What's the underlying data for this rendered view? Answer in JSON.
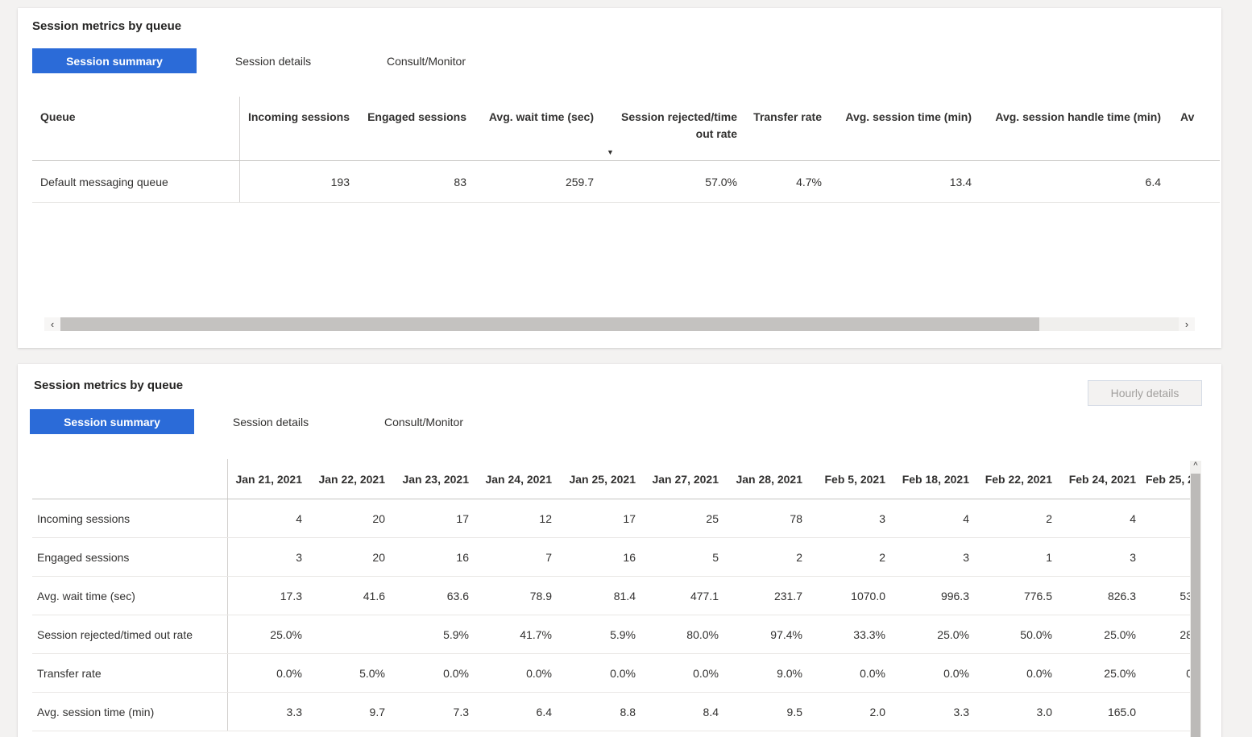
{
  "colors": {
    "accent": "#2b6bd8",
    "page_bg": "#f3f2f1",
    "text": "#323130",
    "active_tab_text": "#ffffff"
  },
  "top_panel": {
    "title": "Session metrics by queue",
    "tabs": [
      "Session summary",
      "Session details",
      "Consult/Monitor"
    ],
    "active_tab": "Session summary",
    "table": {
      "columns": [
        "Queue",
        "Incoming sessions",
        "Engaged sessions",
        "Avg. wait time (sec)",
        "Session rejected/time out rate",
        "Transfer rate",
        "Avg. session time (min)",
        "Avg. session handle time (min)",
        "Av"
      ],
      "sort": {
        "column": "Avg. wait time (sec)",
        "direction": "descending",
        "icon": "▼"
      },
      "rows": [
        {
          "queue": "Default messaging queue",
          "values": [
            "193",
            "83",
            "259.7",
            "57.0%",
            "4.7%",
            "13.4",
            "6.4"
          ]
        }
      ]
    },
    "h_scrollbar": {
      "left_arrow": "‹",
      "right_arrow": "›"
    }
  },
  "bottom_panel": {
    "title": "Session metrics by queue",
    "hourly_details_button": "Hourly details",
    "tabs": [
      "Session summary",
      "Session details",
      "Consult/Monitor"
    ],
    "active_tab": "Session summary",
    "table": {
      "date_columns": [
        "Jan 21, 2021",
        "Jan 22, 2021",
        "Jan 23, 2021",
        "Jan 24, 2021",
        "Jan 25, 2021",
        "Jan 27, 2021",
        "Jan 28, 2021",
        "Feb 5, 2021",
        "Feb 18, 2021",
        "Feb 22, 2021",
        "Feb 24, 2021",
        "Feb 25, 2"
      ],
      "rows": [
        {
          "label": "Incoming sessions",
          "values": [
            "4",
            "20",
            "17",
            "12",
            "17",
            "25",
            "78",
            "3",
            "4",
            "2",
            "4",
            ""
          ]
        },
        {
          "label": "Engaged sessions",
          "values": [
            "3",
            "20",
            "16",
            "7",
            "16",
            "5",
            "2",
            "2",
            "3",
            "1",
            "3",
            ""
          ]
        },
        {
          "label": "Avg. wait time (sec)",
          "values": [
            "17.3",
            "41.6",
            "63.6",
            "78.9",
            "81.4",
            "477.1",
            "231.7",
            "1070.0",
            "996.3",
            "776.5",
            "826.3",
            "53"
          ]
        },
        {
          "label": "Session rejected/timed out rate",
          "values": [
            "25.0%",
            "",
            "5.9%",
            "41.7%",
            "5.9%",
            "80.0%",
            "97.4%",
            "33.3%",
            "25.0%",
            "50.0%",
            "25.0%",
            "28"
          ]
        },
        {
          "label": "Transfer rate",
          "values": [
            "0.0%",
            "5.0%",
            "0.0%",
            "0.0%",
            "0.0%",
            "0.0%",
            "9.0%",
            "0.0%",
            "0.0%",
            "0.0%",
            "25.0%",
            "0"
          ]
        },
        {
          "label": "Avg. session time (min)",
          "values": [
            "3.3",
            "9.7",
            "7.3",
            "6.4",
            "8.8",
            "8.4",
            "9.5",
            "2.0",
            "3.3",
            "3.0",
            "165.0",
            ""
          ]
        }
      ]
    },
    "v_scrollbar": {
      "up_arrow": "^"
    }
  }
}
